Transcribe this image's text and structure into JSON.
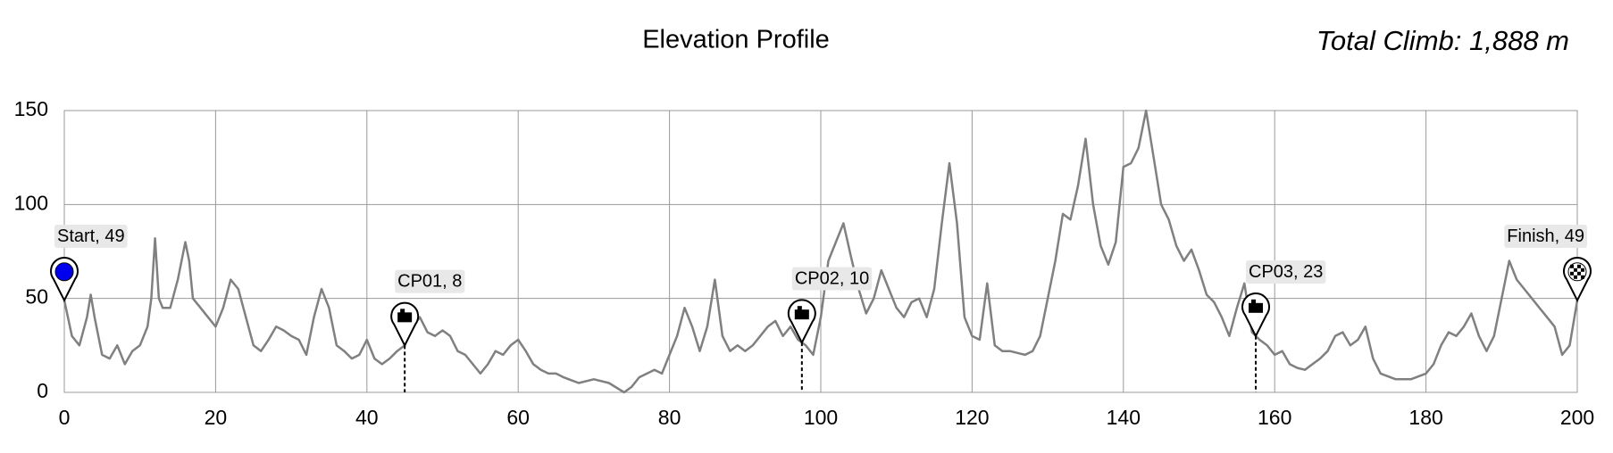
{
  "chart_data": {
    "type": "line",
    "title": "Elevation Profile",
    "annotation": "Total Climb: 1,888 m",
    "x": [
      0,
      1,
      2,
      3,
      3.5,
      4,
      5,
      6,
      7,
      8,
      9,
      10,
      11,
      11.5,
      12,
      12.5,
      13,
      14,
      15,
      16,
      16.5,
      17,
      18,
      19,
      20,
      21,
      22,
      23,
      24,
      25,
      26,
      27,
      28,
      29,
      30,
      31,
      32,
      33,
      34,
      35,
      36,
      37,
      38,
      39,
      40,
      41,
      42,
      43,
      44,
      45,
      46,
      47,
      48,
      49,
      50,
      51,
      52,
      53,
      54,
      55,
      56,
      57,
      58,
      59,
      60,
      61,
      62,
      63,
      64,
      65,
      66,
      68,
      70,
      72,
      74,
      75,
      76,
      78,
      79,
      80,
      81,
      82,
      83,
      84,
      85,
      86,
      87,
      88,
      89,
      90,
      91,
      92,
      93,
      94,
      95,
      96,
      97,
      98,
      99,
      100,
      101,
      102,
      103,
      104,
      105,
      106,
      107,
      108,
      109,
      110,
      111,
      112,
      113,
      114,
      115,
      116,
      117,
      118,
      119,
      120,
      121,
      122,
      123,
      124,
      125,
      126,
      127,
      128,
      129,
      130,
      131,
      132,
      133,
      134,
      135,
      136,
      137,
      138,
      139,
      140,
      141,
      142,
      143,
      144,
      145,
      146,
      147,
      148,
      149,
      150,
      151,
      152,
      153,
      154,
      155,
      156,
      157,
      158,
      159,
      160,
      161,
      162,
      163,
      164,
      165,
      166,
      167,
      168,
      169,
      170,
      171,
      172,
      173,
      174,
      176,
      178,
      180,
      181,
      182,
      183,
      184,
      185,
      186,
      187,
      188,
      189,
      190,
      191,
      192,
      193,
      194,
      195,
      196,
      197,
      198,
      199,
      200
    ],
    "series": [
      {
        "color": "#808080",
        "values": [
          49,
          30,
          25,
          40,
          52,
          40,
          20,
          18,
          25,
          15,
          22,
          25,
          35,
          50,
          82,
          50,
          45,
          45,
          60,
          80,
          70,
          50,
          45,
          40,
          35,
          45,
          60,
          55,
          40,
          25,
          22,
          28,
          35,
          33,
          30,
          28,
          20,
          40,
          55,
          45,
          25,
          22,
          18,
          20,
          28,
          18,
          15,
          18,
          22,
          25,
          35,
          40,
          32,
          30,
          33,
          30,
          22,
          20,
          15,
          10,
          15,
          22,
          20,
          25,
          28,
          22,
          15,
          12,
          10,
          10,
          8,
          5,
          7,
          5,
          0,
          3,
          8,
          12,
          10,
          20,
          30,
          45,
          35,
          22,
          35,
          60,
          30,
          22,
          25,
          22,
          25,
          30,
          35,
          38,
          30,
          35,
          28,
          25,
          20,
          40,
          70,
          80,
          90,
          72,
          55,
          42,
          50,
          65,
          55,
          45,
          40,
          48,
          50,
          40,
          55,
          90,
          122,
          90,
          40,
          30,
          28,
          58,
          25,
          22,
          22,
          21,
          20,
          22,
          30,
          50,
          70,
          95,
          92,
          110,
          135,
          100,
          78,
          68,
          80,
          120,
          122,
          130,
          150,
          125,
          100,
          92,
          78,
          70,
          76,
          65,
          52,
          48,
          40,
          30,
          45,
          58,
          32,
          28,
          25,
          20,
          22,
          15,
          13,
          12,
          15,
          18,
          22,
          30,
          32,
          25,
          28,
          35,
          18,
          10,
          7,
          7,
          10,
          15,
          25,
          32,
          30,
          35,
          42,
          30,
          22,
          30,
          50,
          70,
          60,
          55,
          50,
          45,
          40,
          35,
          20,
          25,
          49
        ]
      }
    ],
    "markers": [
      {
        "label": "Start, 49",
        "x": 0
      },
      {
        "label": "CP01, 8",
        "x": 45
      },
      {
        "label": "CP02, 10",
        "x": 97.5
      },
      {
        "label": "CP03, 23",
        "x": 157.5
      },
      {
        "label": "Finish, 49",
        "x": 200
      }
    ],
    "xlim": [
      0,
      200
    ],
    "xticks": [
      0,
      20,
      40,
      60,
      80,
      100,
      120,
      140,
      160,
      180,
      200
    ],
    "ylim": [
      0,
      150
    ],
    "yticks": [
      0,
      50,
      100,
      150
    ],
    "grid": true
  }
}
